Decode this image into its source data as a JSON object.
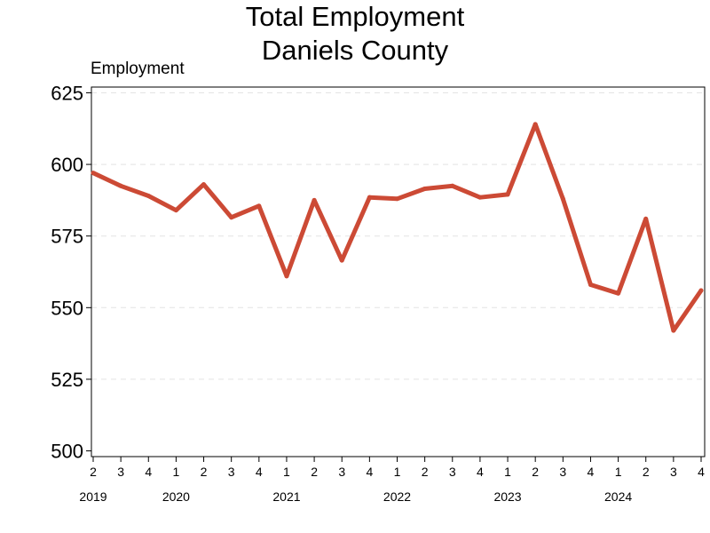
{
  "chart_data": {
    "type": "line",
    "title": "Total Employment",
    "subtitle": "Daniels County",
    "ylabel": "Employment",
    "ylim": [
      498,
      627
    ],
    "yticks": [
      500,
      525,
      550,
      575,
      600,
      625
    ],
    "grid": true,
    "quarters": [
      "2",
      "3",
      "4",
      "1",
      "2",
      "3",
      "4",
      "1",
      "2",
      "3",
      "4",
      "1",
      "2",
      "3",
      "4",
      "1",
      "2",
      "3",
      "4",
      "1",
      "2",
      "3",
      "4"
    ],
    "years": [
      {
        "label": "2019",
        "index": 0
      },
      {
        "label": "2020",
        "index": 3
      },
      {
        "label": "2021",
        "index": 7
      },
      {
        "label": "2022",
        "index": 11
      },
      {
        "label": "2023",
        "index": 15
      },
      {
        "label": "2024",
        "index": 19
      }
    ],
    "series": [
      {
        "color": "#cc4a35",
        "values": [
          597,
          592.5,
          589,
          584,
          593,
          581.5,
          585.5,
          561,
          587.5,
          566.5,
          588.5,
          588,
          591.5,
          592.5,
          588.5,
          589.5,
          614,
          588,
          558,
          555,
          581,
          542,
          556
        ]
      }
    ]
  }
}
